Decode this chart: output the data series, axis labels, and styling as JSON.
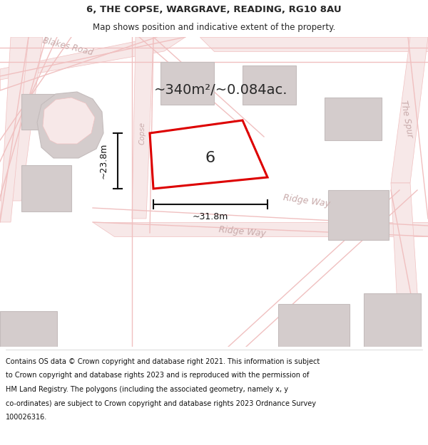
{
  "title_line1": "6, THE COPSE, WARGRAVE, READING, RG10 8AU",
  "title_line2": "Map shows position and indicative extent of the property.",
  "area_label": "~340m²/~0.084ac.",
  "plot_number": "6",
  "dim_width": "~31.8m",
  "dim_height": "~23.8m",
  "footer_lines": [
    "Contains OS data © Crown copyright and database right 2021. This information is subject",
    "to Crown copyright and database rights 2023 and is reproduced with the permission of",
    "HM Land Registry. The polygons (including the associated geometry, namely x, y",
    "co-ordinates) are subject to Crown copyright and database rights 2023 Ordnance Survey",
    "100026316."
  ],
  "bg_color": "#f2eeee",
  "road_fill": "#f7e8e8",
  "road_line": "#f0c0c0",
  "building_fill": "#d4cccc",
  "building_edge": "#c4bcbc",
  "plot_red": "#dd0000",
  "road_label_color": "#c8aaaa",
  "text_dark": "#282828",
  "white": "#ffffff",
  "dim_color": "#111111",
  "footer_color": "#111111"
}
